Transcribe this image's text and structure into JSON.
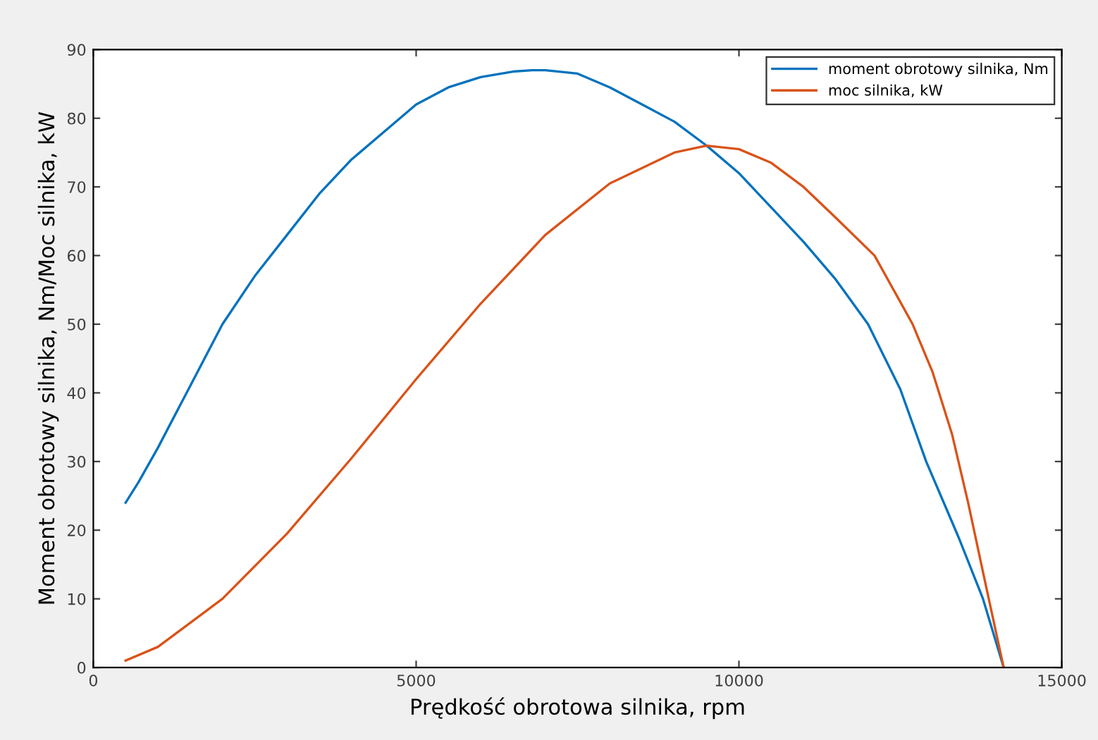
{
  "chart_data": {
    "type": "line",
    "xlabel": "Prędkość obrotowa silnika, rpm",
    "ylabel": "Moment obrotowy silnika, Nm/Moc silnika, kW",
    "xlim": [
      0,
      15000
    ],
    "xticks": [
      0,
      5000,
      10000,
      15000
    ],
    "ylim": [
      0,
      90
    ],
    "yticks": [
      0,
      10,
      20,
      30,
      40,
      50,
      60,
      70,
      80,
      90
    ],
    "grid": false,
    "legend": "top right",
    "marker": "none",
    "line_style": "solid",
    "series": [
      {
        "name": "moment obrotowy silnika, Nm",
        "color": "#0072bd",
        "x": [
          500,
          700,
          1000,
          1500,
          2000,
          2500,
          3000,
          3500,
          4000,
          4500,
          5000,
          5500,
          6000,
          6500,
          6800,
          7000,
          7500,
          8000,
          8500,
          9000,
          9500,
          10000,
          10500,
          11000,
          11500,
          12000,
          12500,
          12900,
          13400,
          13780,
          14100
        ],
        "values": [
          24,
          27,
          32,
          41,
          50,
          57,
          63,
          69,
          74,
          78,
          82,
          84.5,
          86,
          86.8,
          87,
          87,
          86.5,
          84.5,
          82,
          79.5,
          76,
          72,
          67,
          62,
          56.5,
          50,
          40.5,
          30,
          19,
          10,
          0
        ]
      },
      {
        "name": "moc silnika, kW",
        "color": "#d95319",
        "x": [
          500,
          1000,
          2000,
          3000,
          4000,
          5000,
          6000,
          7000,
          8000,
          9000,
          9500,
          10000,
          10500,
          11000,
          11500,
          12100,
          12690,
          13000,
          13300,
          13550,
          13800,
          14100
        ],
        "values": [
          1,
          3,
          10,
          19.5,
          30.5,
          42,
          53,
          63,
          70.5,
          75,
          76,
          75.5,
          73.5,
          70,
          65.5,
          60,
          50,
          43,
          34,
          24,
          13,
          0
        ]
      }
    ]
  }
}
